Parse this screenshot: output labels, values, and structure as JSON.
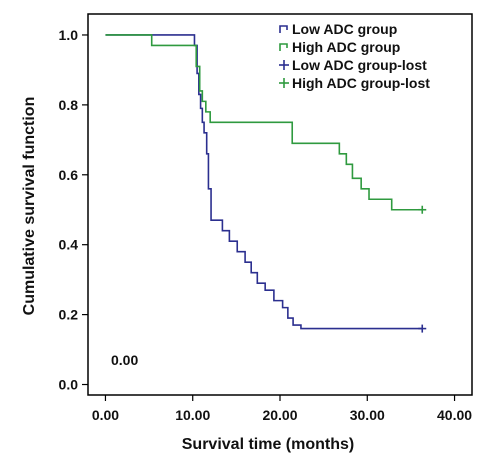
{
  "chart_data": {
    "type": "line",
    "title": "",
    "xlabel": "Survival time (months)",
    "ylabel": "Cumulative survival function",
    "xlim": [
      -2,
      42
    ],
    "ylim": [
      -0.03,
      1.06
    ],
    "xticks": [
      0,
      10,
      20,
      30,
      40
    ],
    "xtick_labels": [
      "0.00",
      "10.00",
      "20.00",
      "30.00",
      "40.00"
    ],
    "yticks": [
      0,
      0.2,
      0.4,
      0.6,
      0.8,
      1.0
    ],
    "ytick_labels": [
      "0.0",
      "0.2",
      "0.4",
      "0.6",
      "0.8",
      "1.0"
    ],
    "annotation": "0.00",
    "legend_position": "top-right",
    "grid": false,
    "series": [
      {
        "name": "Low ADC group",
        "color": "#2b2f8f",
        "step": "post",
        "x": [
          0,
          10.2,
          10.5,
          10.7,
          10.9,
          11.1,
          11.3,
          11.6,
          11.8,
          12.1,
          13.4,
          14.2,
          15.1,
          16.0,
          16.7,
          17.4,
          18.3,
          19.3,
          20.3,
          20.9,
          21.5,
          22.4,
          23.3,
          36.3
        ],
        "y": [
          1.0,
          0.97,
          0.89,
          0.83,
          0.79,
          0.75,
          0.72,
          0.66,
          0.56,
          0.47,
          0.44,
          0.41,
          0.38,
          0.35,
          0.32,
          0.29,
          0.27,
          0.24,
          0.22,
          0.19,
          0.17,
          0.16,
          0.16,
          0.16
        ]
      },
      {
        "name": "High ADC group",
        "color": "#2f9a3f",
        "step": "post",
        "x": [
          0,
          5.3,
          9.6,
          10.4,
          10.8,
          11.1,
          11.5,
          12.0,
          21.4,
          26.8,
          27.6,
          28.3,
          29.3,
          30.2,
          32.8,
          36.3
        ],
        "y": [
          1.0,
          0.97,
          0.97,
          0.91,
          0.84,
          0.81,
          0.78,
          0.75,
          0.69,
          0.66,
          0.63,
          0.59,
          0.56,
          0.53,
          0.5,
          0.5
        ]
      },
      {
        "name": "Low ADC group-lost",
        "color": "#2b2f8f",
        "marker": "+",
        "x": [
          36.3
        ],
        "y": [
          0.16
        ]
      },
      {
        "name": "High ADC group-lost",
        "color": "#2f9a3f",
        "marker": "+",
        "x": [
          36.3
        ],
        "y": [
          0.5
        ]
      }
    ]
  }
}
